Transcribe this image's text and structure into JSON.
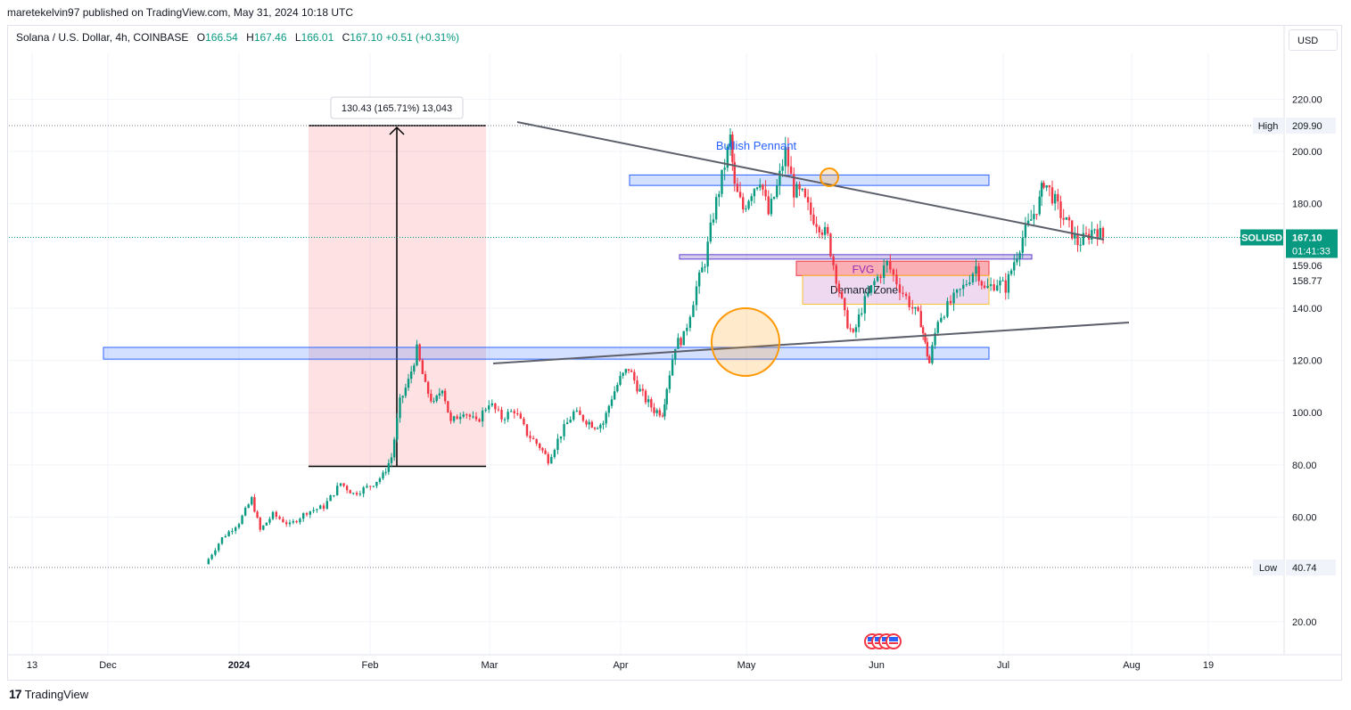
{
  "header": {
    "published": "maretekelvin97 published on TradingView.com, May 31, 2024 10:18 UTC"
  },
  "legend": {
    "symbol": "Solana / U.S. Dollar, 4h, COINBASE",
    "o_label": "O",
    "o_value": "166.54",
    "h_label": "H",
    "h_value": "167.46",
    "l_label": "L",
    "l_value": "166.01",
    "c_label": "C",
    "c_value": "167.10",
    "change": "+0.51 (+0.31%)"
  },
  "currency_button": "USD",
  "footer": {
    "brand": "TradingView",
    "logo_mark": "17"
  },
  "chart_data": {
    "type": "candlestick",
    "symbol": "SOLUSD",
    "timeframe": "4h",
    "y_ticks": [
      "220.00",
      "200.00",
      "180.00",
      "140.00",
      "120.00",
      "100.00",
      "80.00",
      "60.00",
      "20.00"
    ],
    "y_range": [
      8,
      243
    ],
    "x_ticks": [
      "13",
      "Dec",
      "2024",
      "Feb",
      "Mar",
      "Apr",
      "May",
      "Jun",
      "Jul",
      "Aug",
      "19"
    ],
    "x_range_days": [
      -8,
      247
    ],
    "price_markers": {
      "high": {
        "label": "High",
        "value": "209.90"
      },
      "low": {
        "label": "Low",
        "value": "40.74"
      },
      "last": {
        "symbol": "SOLUSD",
        "value": "167.10",
        "countdown": "01:41:33"
      },
      "levels": [
        "159.06",
        "158.77"
      ]
    },
    "annotations": {
      "pennant_label": "Bullish Pennant",
      "fvg_label": "FVG",
      "demand_label": "Demand Zone",
      "measure_label": "130.43 (165.71%) 13,043"
    },
    "series_points": [
      [
        -8,
        42
      ],
      [
        -4,
        52
      ],
      [
        0,
        58
      ],
      [
        3,
        67
      ],
      [
        5,
        55
      ],
      [
        8,
        61
      ],
      [
        12,
        57
      ],
      [
        16,
        62
      ],
      [
        20,
        64
      ],
      [
        24,
        73
      ],
      [
        27,
        69
      ],
      [
        31,
        72
      ],
      [
        34,
        76
      ],
      [
        36,
        83
      ],
      [
        38,
        104
      ],
      [
        40,
        112
      ],
      [
        42,
        124
      ],
      [
        44,
        110
      ],
      [
        46,
        103
      ],
      [
        48,
        110
      ],
      [
        50,
        96
      ],
      [
        53,
        101
      ],
      [
        56,
        96
      ],
      [
        59,
        104
      ],
      [
        62,
        98
      ],
      [
        65,
        101
      ],
      [
        68,
        92
      ],
      [
        71,
        87
      ],
      [
        73,
        82
      ],
      [
        76,
        92
      ],
      [
        79,
        100
      ],
      [
        82,
        97
      ],
      [
        84,
        95
      ],
      [
        86,
        96
      ],
      [
        88,
        106
      ],
      [
        90,
        113
      ],
      [
        92,
        117
      ],
      [
        94,
        110
      ],
      [
        96,
        105
      ],
      [
        98,
        101
      ],
      [
        100,
        100
      ],
      [
        101,
        110
      ],
      [
        103,
        126
      ],
      [
        105,
        129
      ],
      [
        108,
        148
      ],
      [
        110,
        158
      ],
      [
        112,
        176
      ],
      [
        114,
        190
      ],
      [
        116,
        205
      ],
      [
        117,
        186
      ],
      [
        119,
        178
      ],
      [
        121,
        185
      ],
      [
        123,
        190
      ],
      [
        125,
        176
      ],
      [
        127,
        186
      ],
      [
        129,
        200
      ],
      [
        131,
        185
      ],
      [
        133,
        183
      ],
      [
        135,
        176
      ],
      [
        137,
        172
      ],
      [
        139,
        167
      ],
      [
        141,
        152
      ],
      [
        143,
        137
      ],
      [
        145,
        129
      ],
      [
        147,
        140
      ],
      [
        150,
        150
      ],
      [
        153,
        157
      ],
      [
        156,
        148
      ],
      [
        159,
        140
      ],
      [
        161,
        135
      ],
      [
        162,
        126
      ],
      [
        163,
        119
      ],
      [
        165,
        136
      ],
      [
        168,
        142
      ],
      [
        171,
        148
      ],
      [
        174,
        156
      ],
      [
        176,
        147
      ],
      [
        179,
        150
      ],
      [
        181,
        148
      ],
      [
        183,
        158
      ],
      [
        185,
        167
      ],
      [
        187,
        174
      ],
      [
        189,
        181
      ],
      [
        190,
        189
      ],
      [
        192,
        183
      ],
      [
        194,
        176
      ],
      [
        196,
        171
      ],
      [
        198,
        165
      ],
      [
        200,
        167
      ],
      [
        202,
        171
      ],
      [
        204,
        167
      ]
    ]
  }
}
